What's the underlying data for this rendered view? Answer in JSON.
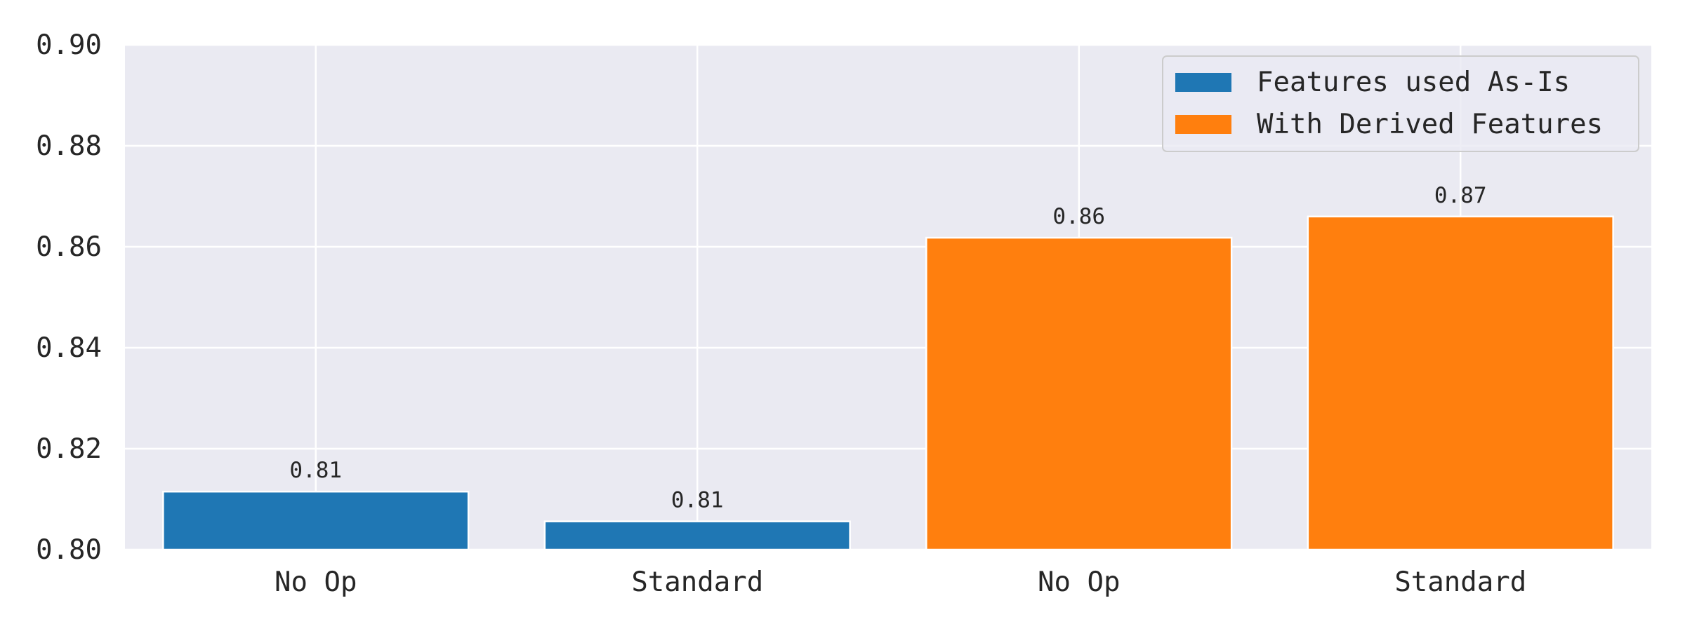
{
  "chart_data": {
    "type": "bar",
    "title": "",
    "xlabel": "",
    "ylabel": "",
    "ylim": [
      0.8,
      0.9
    ],
    "yticks": [
      "0.80",
      "0.82",
      "0.84",
      "0.86",
      "0.88",
      "0.90"
    ],
    "grid": true,
    "legend_position": "top-right",
    "bars": [
      {
        "category": "No Op",
        "series": "Features used As-Is",
        "value": 0.8115,
        "label": "0.81"
      },
      {
        "category": "Standard",
        "series": "Features used As-Is",
        "value": 0.8056,
        "label": "0.81"
      },
      {
        "category": "No Op",
        "series": "With Derived Features",
        "value": 0.8618,
        "label": "0.86"
      },
      {
        "category": "Standard",
        "series": "With Derived Features",
        "value": 0.866,
        "label": "0.87"
      }
    ],
    "series": [
      {
        "name": "Features used As-Is",
        "color": "#1f77b4"
      },
      {
        "name": "With Derived Features",
        "color": "#ff7f0e"
      }
    ]
  }
}
